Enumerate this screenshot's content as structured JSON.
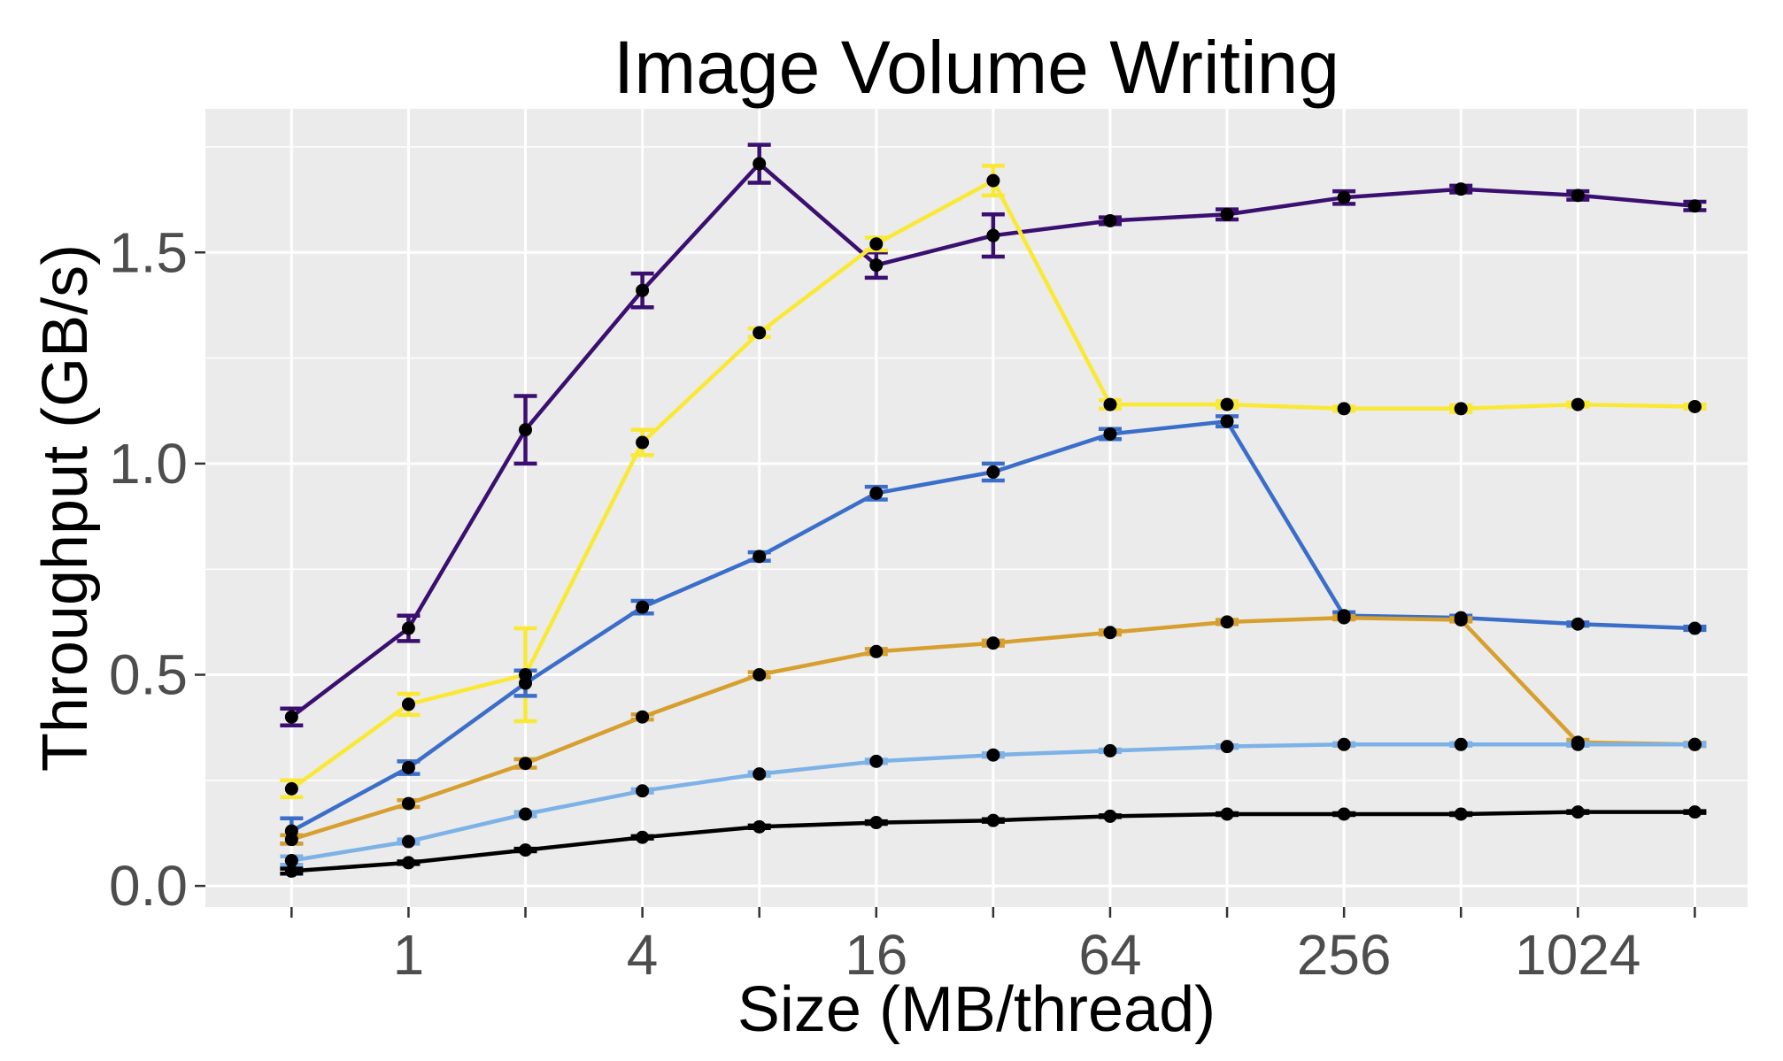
{
  "chart_data": {
    "type": "line",
    "title": "Image Volume Writing",
    "xlabel": "Size (MB/thread)",
    "ylabel": "Throughput (GB/s)",
    "x_scale": "log2",
    "x": [
      0.5,
      1,
      2,
      4,
      8,
      16,
      32,
      64,
      128,
      256,
      512,
      1024,
      2048
    ],
    "x_tick_values": [
      0.5,
      1,
      2,
      4,
      8,
      16,
      32,
      64,
      128,
      256,
      512,
      1024,
      2048
    ],
    "x_tick_labels": [
      "",
      "1",
      "",
      "4",
      "",
      "16",
      "",
      "64",
      "",
      "256",
      "",
      "1024",
      ""
    ],
    "xlim": [
      0.3,
      2800
    ],
    "ylim": [
      -0.05,
      1.84
    ],
    "y_ticks": [
      0.0,
      0.5,
      1.0,
      1.5
    ],
    "y_tick_labels": [
      "0.0",
      "0.5",
      "1.0",
      "1.5"
    ],
    "grid": true,
    "panel_background": "#ebebeb",
    "legend": "none",
    "series": [
      {
        "color": "#3b0f70",
        "values": [
          0.4,
          0.61,
          1.08,
          1.41,
          1.71,
          1.47,
          1.54,
          1.575,
          1.59,
          1.63,
          1.65,
          1.635,
          1.61
        ],
        "errors": [
          0.02,
          0.03,
          0.08,
          0.04,
          0.045,
          0.03,
          0.05,
          0.008,
          0.012,
          0.015,
          0.008,
          0.01,
          0.01
        ]
      },
      {
        "color": "#f9e934",
        "values": [
          0.23,
          0.43,
          0.5,
          1.05,
          1.31,
          1.52,
          1.67,
          1.14,
          1.14,
          1.13,
          1.13,
          1.14,
          1.135
        ],
        "errors": [
          0.02,
          0.025,
          0.11,
          0.03,
          0.01,
          0.015,
          0.035,
          0.01,
          0.008,
          0.005,
          0.008,
          0.005,
          0.005
        ]
      },
      {
        "color": "#3a6ec9",
        "values": [
          0.13,
          0.28,
          0.48,
          0.66,
          0.78,
          0.93,
          0.98,
          1.07,
          1.1,
          0.64,
          0.635,
          0.62,
          0.61
        ],
        "errors": [
          0.03,
          0.015,
          0.03,
          0.015,
          0.01,
          0.015,
          0.02,
          0.012,
          0.012,
          0.008,
          0.005,
          0.004,
          0.004
        ]
      },
      {
        "color": "#d69f2e",
        "values": [
          0.11,
          0.195,
          0.29,
          0.4,
          0.5,
          0.555,
          0.575,
          0.6,
          0.625,
          0.635,
          0.63,
          0.34,
          0.335
        ],
        "errors": [
          0.01,
          0.008,
          0.01,
          0.006,
          0.006,
          0.006,
          0.006,
          0.005,
          0.005,
          0.004,
          0.004,
          0.006,
          0.004
        ]
      },
      {
        "color": "#7cb2e6",
        "values": [
          0.06,
          0.105,
          0.17,
          0.225,
          0.265,
          0.295,
          0.31,
          0.32,
          0.33,
          0.335,
          0.335,
          0.335,
          0.335
        ],
        "errors": [
          0.01,
          0.005,
          0.005,
          0.004,
          0.004,
          0.004,
          0.004,
          0.003,
          0.003,
          0.003,
          0.003,
          0.003,
          0.003
        ]
      },
      {
        "color": "#000000",
        "values": [
          0.035,
          0.055,
          0.085,
          0.115,
          0.14,
          0.15,
          0.155,
          0.165,
          0.17,
          0.17,
          0.17,
          0.175,
          0.175
        ],
        "errors": [
          0.006,
          0.003,
          0.003,
          0.003,
          0.003,
          0.003,
          0.003,
          0.002,
          0.002,
          0.002,
          0.002,
          0.002,
          0.002
        ]
      }
    ]
  }
}
